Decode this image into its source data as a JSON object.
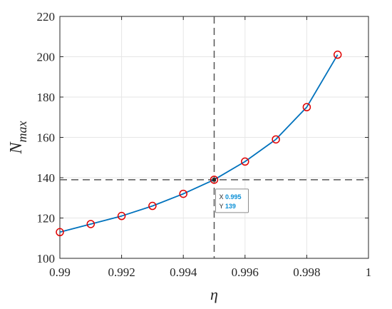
{
  "chart_data": {
    "type": "line",
    "xlabel": "η",
    "ylabel_main": "N",
    "ylabel_sub": "max",
    "xlim": [
      0.99,
      1.0
    ],
    "ylim": [
      100,
      220
    ],
    "xticks": [
      0.99,
      0.992,
      0.994,
      0.996,
      0.998,
      1.0
    ],
    "xtick_labels": [
      "0.99",
      "0.992",
      "0.994",
      "0.996",
      "0.998",
      "1"
    ],
    "yticks": [
      100,
      120,
      140,
      160,
      180,
      200,
      220
    ],
    "ytick_labels": [
      "100",
      "120",
      "140",
      "160",
      "180",
      "200",
      "220"
    ],
    "grid": true,
    "series": [
      {
        "x": [
          0.99,
          0.991,
          0.992,
          0.993,
          0.994,
          0.995,
          0.996,
          0.997,
          0.998,
          0.999
        ],
        "y": [
          113,
          117,
          121,
          126,
          132,
          139,
          148,
          159,
          175,
          201
        ],
        "line_color": "#0072bd",
        "marker": "circle",
        "marker_color": "#e00000"
      }
    ],
    "reference_lines": {
      "x": 0.995,
      "y": 139,
      "color": "#555555",
      "style": "dashed"
    },
    "datatip": {
      "x_key": "X",
      "x_value": "0.995",
      "y_key": "Y",
      "y_value": "139"
    }
  }
}
